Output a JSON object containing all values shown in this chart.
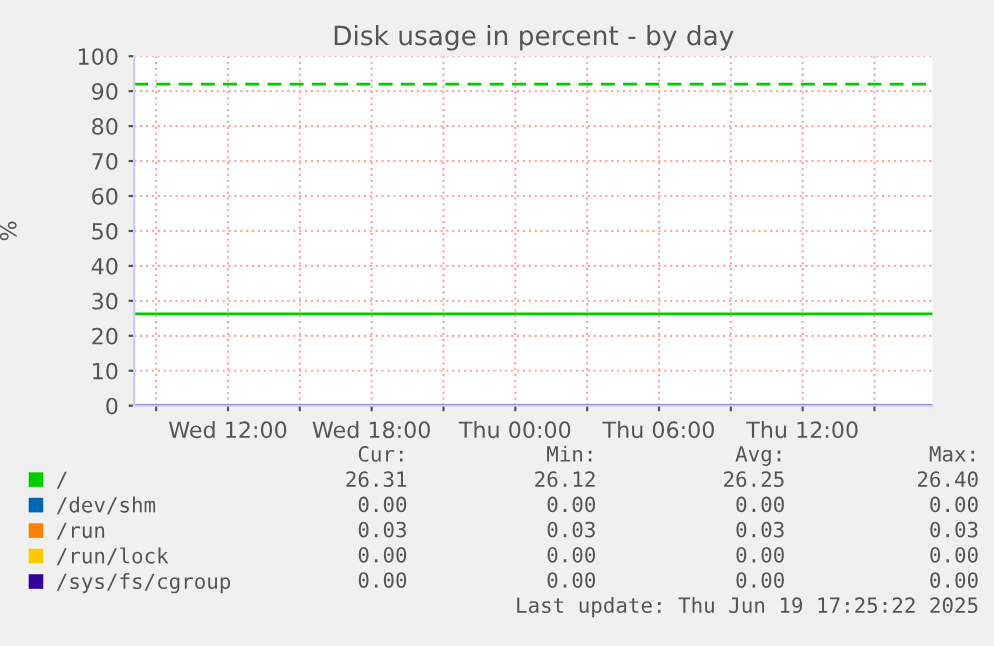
{
  "chart_data": {
    "type": "line",
    "title": "Disk usage in percent - by day",
    "ylabel": "%",
    "x": [
      "2025-06-18T08:05",
      "2025-06-19T17:25"
    ],
    "series": [
      {
        "name": "/",
        "color": "#00cc00",
        "values": [
          26.3,
          26.3
        ]
      },
      {
        "name": "/dev/shm",
        "color": "#0066b3",
        "values": [
          null,
          null
        ]
      },
      {
        "name": "/run",
        "color": "#ff8000",
        "values": [
          null,
          null
        ]
      },
      {
        "name": "/run/lock",
        "color": "#ffcc00",
        "values": [
          null,
          null
        ]
      },
      {
        "name": "/sys/fs/cgroup",
        "color": "#330099",
        "values": [
          0,
          0
        ]
      }
    ],
    "xlim": [
      "2025-06-18T08:05",
      "2025-06-19T17:25"
    ],
    "xticks": [
      {
        "value": "2025-06-18T09:00",
        "label": null
      },
      {
        "value": "2025-06-18T12:00",
        "label": "Wed 12:00"
      },
      {
        "value": "2025-06-18T15:00",
        "label": null
      },
      {
        "value": "2025-06-18T18:00",
        "label": "Wed 18:00"
      },
      {
        "value": "2025-06-18T21:00",
        "label": null
      },
      {
        "value": "2025-06-19T00:00",
        "label": "Thu 00:00"
      },
      {
        "value": "2025-06-19T03:00",
        "label": null
      },
      {
        "value": "2025-06-19T06:00",
        "label": "Thu 06:00"
      },
      {
        "value": "2025-06-19T09:00",
        "label": null
      },
      {
        "value": "2025-06-19T12:00",
        "label": "Thu 12:00"
      },
      {
        "value": "2025-06-19T15:00",
        "label": null
      }
    ],
    "ylim": [
      0,
      100
    ],
    "yticks": [
      0,
      10,
      20,
      30,
      40,
      50,
      60,
      70,
      80,
      90,
      100
    ],
    "ref_lines": [
      {
        "axis": "y",
        "value": 92,
        "color": "#00cc00",
        "line_style": "dashed"
      }
    ],
    "grid": true,
    "legend": "bottom left",
    "line_style": "solid",
    "marker": "none",
    "annotations": [
      "Cur:",
      "Min:",
      "Avg:",
      "Max:",
      "26.31",
      "26.12",
      "26.25",
      "26.40",
      "0.00",
      "0.00",
      "0.00",
      "0.00",
      "0.03",
      "0.03",
      "0.03",
      "0.03",
      "0.00",
      "0.00",
      "0.00",
      "0.00",
      "0.00",
      "0.00",
      "0.00",
      "0.00",
      "Last update: Thu Jun 19 17:25:22 2025"
    ]
  }
}
